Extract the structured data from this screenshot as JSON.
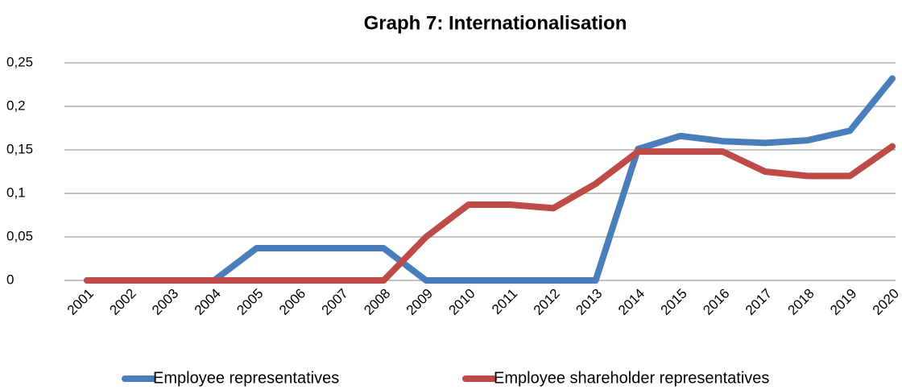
{
  "chart_data": {
    "type": "line",
    "title": "Graph 7: Internationalisation",
    "categories": [
      "2001",
      "2002",
      "2003",
      "2004",
      "2005",
      "2006",
      "2007",
      "2008",
      "2009",
      "2010",
      "2011",
      "2012",
      "2013",
      "2014",
      "2015",
      "2016",
      "2017",
      "2018",
      "2019",
      "2020"
    ],
    "series": [
      {
        "name": "Employee representatives",
        "color": "#4a7ebb",
        "values": [
          0,
          0,
          0,
          0,
          0.037,
          0.037,
          0.037,
          0.037,
          0,
          0,
          0,
          0,
          0,
          0.151,
          0.166,
          0.16,
          0.158,
          0.161,
          0.172,
          0.232
        ]
      },
      {
        "name": "Employee shareholder representatives",
        "color": "#be4b48",
        "values": [
          0,
          0,
          0,
          0,
          0,
          0,
          0,
          0,
          0.05,
          0.087,
          0.087,
          0.083,
          0.111,
          0.148,
          0.148,
          0.148,
          0.125,
          0.12,
          0.12,
          0.154
        ]
      }
    ],
    "ylim": [
      0,
      0.25
    ],
    "yticks": [
      0,
      {
        "value": 0.05,
        "label": "0,05"
      },
      {
        "value": 0.1,
        "label": "0,1"
      },
      {
        "value": 0.15,
        "label": "0,15"
      },
      {
        "value": 0.2,
        "label": "0,2"
      },
      {
        "value": 0.25,
        "label": "0,25"
      }
    ],
    "grid": true,
    "legend": "bottom"
  }
}
